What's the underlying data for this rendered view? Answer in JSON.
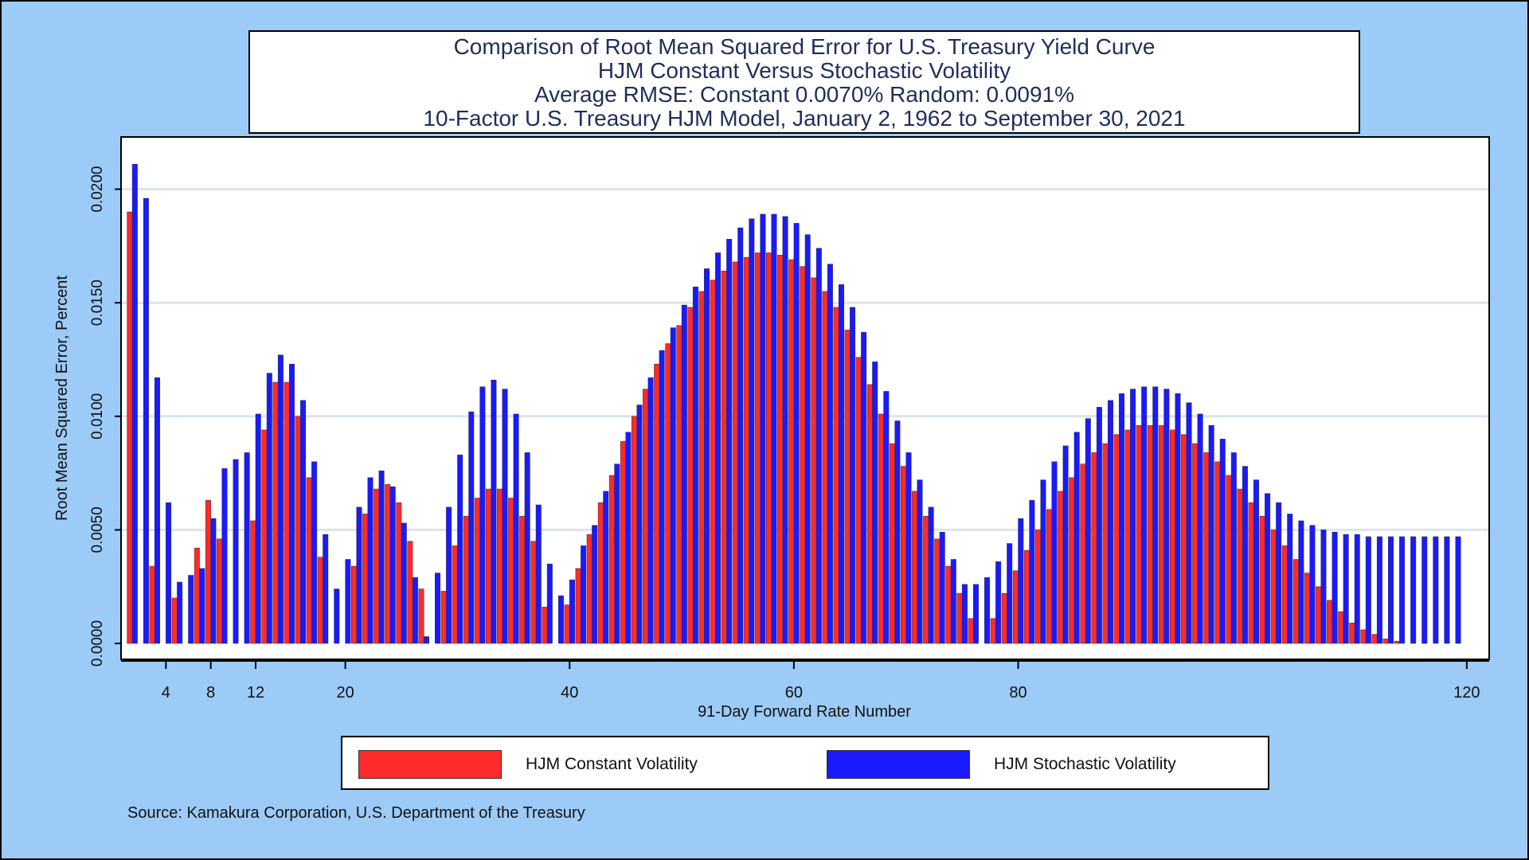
{
  "title": {
    "line1": "Comparison of Root Mean Squared Error for U.S. Treasury Yield Curve",
    "line2": "HJM Constant Versus Stochastic Volatility",
    "line3": "Average RMSE: Constant  0.0070%   Random:  0.0091%",
    "line4": "10-Factor U.S. Treasury HJM Model, January 2, 1962 to September 30, 2021"
  },
  "legend": {
    "constant_label": "HJM Constant Volatility",
    "stochastic_label": "HJM Stochastic Volatility"
  },
  "source": "Source: Kamakura Corporation, U.S. Department of the Treasury",
  "colors": {
    "constant": "#ff2a2a",
    "stochastic": "#1a1aff",
    "background": "#9ccbf7",
    "plot_bg": "#ffffff",
    "grid": "#dce4ea"
  },
  "chart_data": {
    "type": "bar",
    "xlabel": "91-Day Forward Rate Number",
    "ylabel": "Root Mean Squared Error, Percent",
    "xlim": [
      0,
      122
    ],
    "ylim": [
      0,
      0.0223
    ],
    "x_ticks": [
      4,
      8,
      12,
      20,
      40,
      60,
      80,
      120
    ],
    "y_ticks": [
      "0.0000",
      "0.0050",
      "0.0100",
      "0.0150",
      "0.0200"
    ],
    "grid": true,
    "legend_position": "bottom",
    "x": [
      1,
      2,
      3,
      4,
      5,
      6,
      7,
      8,
      9,
      10,
      11,
      12,
      13,
      14,
      15,
      16,
      17,
      18,
      19,
      20,
      21,
      22,
      23,
      24,
      25,
      26,
      27,
      28,
      29,
      30,
      31,
      32,
      33,
      34,
      35,
      36,
      37,
      38,
      39,
      40,
      41,
      42,
      43,
      44,
      45,
      46,
      47,
      48,
      49,
      50,
      51,
      52,
      53,
      54,
      55,
      56,
      57,
      58,
      59,
      60,
      61,
      62,
      63,
      64,
      65,
      66,
      67,
      68,
      69,
      70,
      71,
      72,
      73,
      74,
      75,
      76,
      77,
      78,
      79,
      80,
      81,
      82,
      83,
      84,
      85,
      86,
      87,
      88,
      89,
      90,
      91,
      92,
      93,
      94,
      95,
      96,
      97,
      98,
      99,
      100,
      101,
      102,
      103,
      104,
      105,
      106,
      107,
      108,
      109,
      110,
      111,
      112,
      113,
      114,
      115,
      116,
      117,
      118,
      119
    ],
    "series": [
      {
        "name": "HJM Constant Volatility",
        "values": [
          0.019,
          0.0,
          0.0034,
          0.0,
          0.002,
          0.0,
          0.0042,
          0.0063,
          0.0046,
          0.0,
          0.0,
          0.0054,
          0.0094,
          0.0115,
          0.0115,
          0.01,
          0.0073,
          0.0038,
          0.0,
          0.0,
          0.0034,
          0.0057,
          0.0068,
          0.007,
          0.0062,
          0.0045,
          0.0024,
          0.0,
          0.0023,
          0.0043,
          0.0056,
          0.0064,
          0.0068,
          0.0068,
          0.0064,
          0.0056,
          0.0045,
          0.0016,
          0.0,
          0.0017,
          0.0033,
          0.0048,
          0.0062,
          0.0074,
          0.0089,
          0.01,
          0.0112,
          0.0123,
          0.0132,
          0.014,
          0.0148,
          0.0155,
          0.016,
          0.0164,
          0.0168,
          0.017,
          0.0172,
          0.0172,
          0.0171,
          0.0169,
          0.0166,
          0.0161,
          0.0155,
          0.0148,
          0.0138,
          0.0126,
          0.0114,
          0.0101,
          0.0088,
          0.0078,
          0.0067,
          0.0056,
          0.0046,
          0.0034,
          0.0022,
          0.0011,
          0.0,
          0.0011,
          0.0022,
          0.0032,
          0.0041,
          0.005,
          0.0059,
          0.0067,
          0.0073,
          0.0079,
          0.0084,
          0.0088,
          0.0092,
          0.0094,
          0.0096,
          0.0096,
          0.0096,
          0.0094,
          0.0092,
          0.0088,
          0.0084,
          0.008,
          0.0074,
          0.0068,
          0.0062,
          0.0056,
          0.005,
          0.0043,
          0.0037,
          0.0031,
          0.0025,
          0.0019,
          0.0014,
          0.0009,
          0.0006,
          0.0004,
          0.0002,
          0.0001,
          0.0,
          0.0,
          0.0,
          0.0,
          0.0
        ]
      },
      {
        "name": "HJM Stochastic Volatility",
        "values": [
          0.0211,
          0.0196,
          0.0117,
          0.0062,
          0.0027,
          0.003,
          0.0033,
          0.0055,
          0.0077,
          0.0081,
          0.0084,
          0.0101,
          0.0119,
          0.0127,
          0.0123,
          0.0107,
          0.008,
          0.0048,
          0.0024,
          0.0037,
          0.006,
          0.0073,
          0.0076,
          0.0069,
          0.0053,
          0.0029,
          0.0003,
          0.0031,
          0.006,
          0.0083,
          0.0102,
          0.0113,
          0.0116,
          0.0112,
          0.0101,
          0.0084,
          0.0061,
          0.0035,
          0.0021,
          0.0028,
          0.0043,
          0.0052,
          0.0067,
          0.0079,
          0.0093,
          0.0105,
          0.0117,
          0.0129,
          0.0139,
          0.0149,
          0.0157,
          0.0165,
          0.0172,
          0.0178,
          0.0183,
          0.0187,
          0.0189,
          0.0189,
          0.0188,
          0.0185,
          0.018,
          0.0174,
          0.0167,
          0.0158,
          0.0148,
          0.0137,
          0.0124,
          0.0111,
          0.0098,
          0.0084,
          0.0072,
          0.006,
          0.0049,
          0.0037,
          0.0026,
          0.0026,
          0.0029,
          0.0036,
          0.0044,
          0.0055,
          0.0063,
          0.0072,
          0.008,
          0.0087,
          0.0093,
          0.0099,
          0.0104,
          0.0107,
          0.011,
          0.0112,
          0.0113,
          0.0113,
          0.0112,
          0.011,
          0.0106,
          0.0101,
          0.0096,
          0.009,
          0.0084,
          0.0078,
          0.0072,
          0.0066,
          0.0062,
          0.0057,
          0.0054,
          0.0052,
          0.005,
          0.0049,
          0.0048,
          0.0048,
          0.0047,
          0.0047,
          0.0047,
          0.0047,
          0.0047,
          0.0047,
          0.0047,
          0.0047,
          0.0047
        ]
      }
    ]
  }
}
